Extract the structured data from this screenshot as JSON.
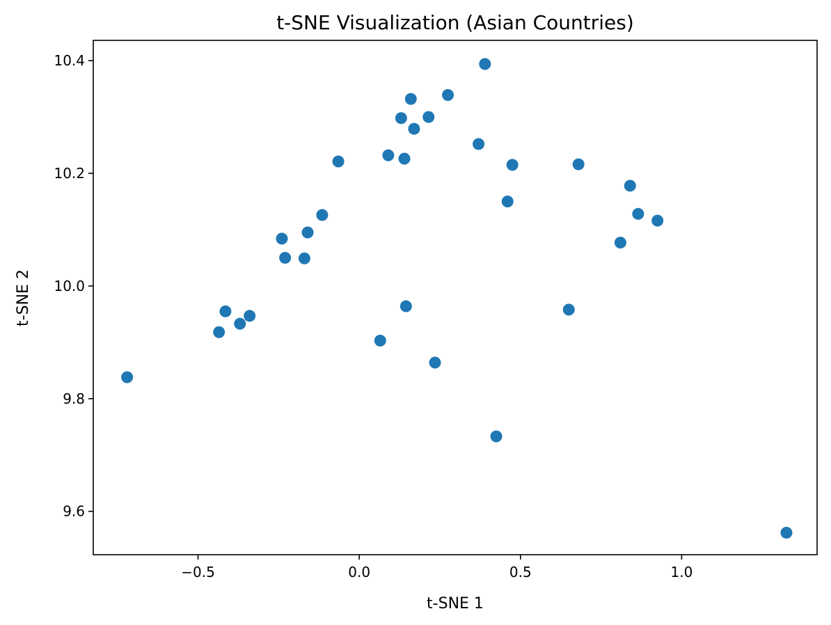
{
  "chart_data": {
    "type": "scatter",
    "title": "t-SNE Visualization (Asian Countries)",
    "xlabel": "t-SNE 1",
    "ylabel": "t-SNE 2",
    "xlim": [
      -0.825,
      1.42
    ],
    "ylim": [
      9.523,
      10.436
    ],
    "xticks": [
      {
        "value": -0.5,
        "label": "−0.5"
      },
      {
        "value": 0.0,
        "label": "0.0"
      },
      {
        "value": 0.5,
        "label": "0.5"
      },
      {
        "value": 1.0,
        "label": "1.0"
      }
    ],
    "yticks": [
      {
        "value": 9.6,
        "label": "9.6"
      },
      {
        "value": 9.8,
        "label": "9.8"
      },
      {
        "value": 10.0,
        "label": "10.0"
      },
      {
        "value": 10.2,
        "label": "10.2"
      },
      {
        "value": 10.4,
        "label": "10.4"
      }
    ],
    "grid": false,
    "point_color": "#1f77b4",
    "points": [
      {
        "x": 0.39,
        "y": 10.394
      },
      {
        "x": 0.275,
        "y": 10.339
      },
      {
        "x": 0.16,
        "y": 10.332
      },
      {
        "x": 0.13,
        "y": 10.298
      },
      {
        "x": 0.215,
        "y": 10.3
      },
      {
        "x": 0.17,
        "y": 10.279
      },
      {
        "x": 0.37,
        "y": 10.252
      },
      {
        "x": 0.09,
        "y": 10.232
      },
      {
        "x": 0.14,
        "y": 10.226
      },
      {
        "x": -0.065,
        "y": 10.221
      },
      {
        "x": 0.475,
        "y": 10.215
      },
      {
        "x": 0.68,
        "y": 10.216
      },
      {
        "x": 0.84,
        "y": 10.178
      },
      {
        "x": 0.46,
        "y": 10.15
      },
      {
        "x": 0.865,
        "y": 10.128
      },
      {
        "x": 0.925,
        "y": 10.116
      },
      {
        "x": -0.115,
        "y": 10.126
      },
      {
        "x": -0.16,
        "y": 10.095
      },
      {
        "x": -0.24,
        "y": 10.084
      },
      {
        "x": 0.81,
        "y": 10.077
      },
      {
        "x": -0.23,
        "y": 10.05
      },
      {
        "x": -0.17,
        "y": 10.049
      },
      {
        "x": 0.145,
        "y": 9.964
      },
      {
        "x": 0.65,
        "y": 9.958
      },
      {
        "x": -0.415,
        "y": 9.955
      },
      {
        "x": -0.34,
        "y": 9.947
      },
      {
        "x": -0.37,
        "y": 9.933
      },
      {
        "x": -0.435,
        "y": 9.918
      },
      {
        "x": 0.065,
        "y": 9.903
      },
      {
        "x": 0.235,
        "y": 9.864
      },
      {
        "x": -0.72,
        "y": 9.838
      },
      {
        "x": 0.425,
        "y": 9.733
      },
      {
        "x": 1.325,
        "y": 9.562
      }
    ]
  }
}
